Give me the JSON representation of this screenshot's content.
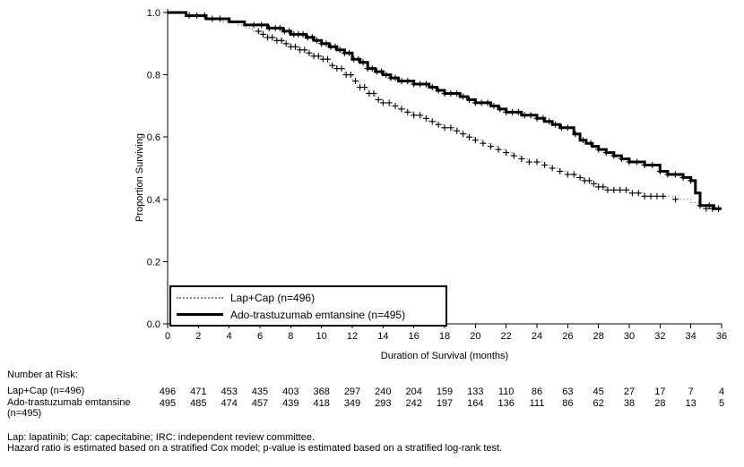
{
  "chart_data": {
    "type": "line",
    "subtype": "kaplan-meier-step",
    "title": "",
    "xlabel": "Duration of Survival (months)",
    "ylabel": "Proportion Surviving",
    "xlim": [
      0,
      36
    ],
    "ylim": [
      0.0,
      1.0
    ],
    "xticks": [
      0,
      2,
      4,
      6,
      8,
      10,
      12,
      14,
      16,
      18,
      20,
      22,
      24,
      26,
      28,
      30,
      32,
      34,
      36
    ],
    "yticks": [
      0.0,
      0.2,
      0.4,
      0.6,
      0.8,
      1.0
    ],
    "grid": false,
    "legend_position": "inside-bottom-left",
    "series": [
      {
        "id": "lapcap",
        "name": "Lap+Cap (n=496)",
        "style": "dotted",
        "color": "#8a8a8a",
        "width": 1.2,
        "points": [
          [
            0,
            1.0
          ],
          [
            1,
            1.0
          ],
          [
            1.5,
            0.99
          ],
          [
            2.5,
            0.98
          ],
          [
            3.5,
            0.97
          ],
          [
            4.5,
            0.96
          ],
          [
            5,
            0.95
          ],
          [
            5.5,
            0.94
          ],
          [
            6,
            0.93
          ],
          [
            6.5,
            0.92
          ],
          [
            7,
            0.91
          ],
          [
            7.5,
            0.9
          ],
          [
            8,
            0.89
          ],
          [
            8.5,
            0.88
          ],
          [
            9,
            0.87
          ],
          [
            9.5,
            0.86
          ],
          [
            10,
            0.85
          ],
          [
            10.5,
            0.83
          ],
          [
            11,
            0.82
          ],
          [
            11.5,
            0.8
          ],
          [
            12,
            0.78
          ],
          [
            12.5,
            0.76
          ],
          [
            13,
            0.74
          ],
          [
            13.5,
            0.72
          ],
          [
            14,
            0.71
          ],
          [
            14.5,
            0.7
          ],
          [
            15,
            0.69
          ],
          [
            15.5,
            0.68
          ],
          [
            16,
            0.67
          ],
          [
            16.5,
            0.66
          ],
          [
            17,
            0.65
          ],
          [
            17.5,
            0.64
          ],
          [
            18,
            0.63
          ],
          [
            18.5,
            0.62
          ],
          [
            19,
            0.61
          ],
          [
            19.5,
            0.6
          ],
          [
            20,
            0.59
          ],
          [
            20.5,
            0.58
          ],
          [
            21,
            0.57
          ],
          [
            21.5,
            0.56
          ],
          [
            22,
            0.55
          ],
          [
            22.5,
            0.54
          ],
          [
            23,
            0.53
          ],
          [
            23.5,
            0.52
          ],
          [
            24.5,
            0.51
          ],
          [
            25,
            0.5
          ],
          [
            25.5,
            0.49
          ],
          [
            26,
            0.48
          ],
          [
            26.5,
            0.47
          ],
          [
            27,
            0.46
          ],
          [
            27.5,
            0.45
          ],
          [
            28,
            0.44
          ],
          [
            28.5,
            0.43
          ],
          [
            30,
            0.42
          ],
          [
            31,
            0.41
          ],
          [
            33,
            0.4
          ],
          [
            34,
            0.39
          ],
          [
            34.5,
            0.38
          ],
          [
            35,
            0.37
          ],
          [
            36,
            0.37
          ]
        ],
        "censor_times": [
          5.9,
          6.2,
          6.5,
          6.8,
          7.1,
          7.4,
          7.7,
          8.0,
          8.3,
          8.6,
          8.9,
          9.2,
          9.5,
          9.8,
          10.1,
          10.4,
          10.7,
          11.0,
          11.3,
          11.6,
          11.9,
          12.2,
          12.5,
          12.8,
          13.1,
          13.4,
          13.7,
          14.0,
          14.4,
          14.8,
          15.2,
          15.6,
          16.0,
          16.4,
          16.8,
          17.2,
          17.6,
          18.0,
          18.4,
          18.8,
          19.2,
          19.6,
          20.0,
          20.5,
          21.0,
          21.5,
          22.0,
          22.5,
          23.0,
          23.5,
          24.0,
          24.5,
          25.0,
          25.5,
          26.0,
          26.4,
          26.8,
          27.1,
          27.4,
          27.7,
          28.0,
          28.3,
          28.6,
          29.0,
          29.4,
          29.8,
          30.2,
          30.6,
          31.0,
          31.4,
          31.8,
          32.2,
          33.0,
          34.6,
          35.0,
          35.4,
          35.8
        ]
      },
      {
        "id": "tdm1",
        "name": "Ado-trastuzumab emtansine (n=495)",
        "style": "solid",
        "color": "#000000",
        "width": 3,
        "points": [
          [
            0,
            1.0
          ],
          [
            1.2,
            0.99
          ],
          [
            2.5,
            0.98
          ],
          [
            4,
            0.97
          ],
          [
            5,
            0.96
          ],
          [
            6.5,
            0.95
          ],
          [
            7.5,
            0.94
          ],
          [
            8,
            0.93
          ],
          [
            9,
            0.92
          ],
          [
            9.5,
            0.91
          ],
          [
            10,
            0.9
          ],
          [
            10.5,
            0.89
          ],
          [
            11,
            0.88
          ],
          [
            11.5,
            0.87
          ],
          [
            12,
            0.85
          ],
          [
            12.5,
            0.84
          ],
          [
            13,
            0.82
          ],
          [
            13.5,
            0.81
          ],
          [
            14,
            0.8
          ],
          [
            14.5,
            0.79
          ],
          [
            15,
            0.78
          ],
          [
            16,
            0.77
          ],
          [
            17,
            0.76
          ],
          [
            17.5,
            0.75
          ],
          [
            18,
            0.74
          ],
          [
            19,
            0.73
          ],
          [
            19.5,
            0.72
          ],
          [
            20,
            0.71
          ],
          [
            21,
            0.7
          ],
          [
            21.5,
            0.69
          ],
          [
            22,
            0.68
          ],
          [
            23,
            0.67
          ],
          [
            24,
            0.66
          ],
          [
            24.5,
            0.65
          ],
          [
            25,
            0.64
          ],
          [
            25.5,
            0.63
          ],
          [
            26.4,
            0.61
          ],
          [
            26.8,
            0.59
          ],
          [
            27.2,
            0.58
          ],
          [
            27.6,
            0.57
          ],
          [
            28,
            0.56
          ],
          [
            28.5,
            0.55
          ],
          [
            29,
            0.54
          ],
          [
            29.5,
            0.53
          ],
          [
            30,
            0.52
          ],
          [
            31,
            0.51
          ],
          [
            32,
            0.49
          ],
          [
            32.5,
            0.48
          ],
          [
            33.5,
            0.47
          ],
          [
            34,
            0.46
          ],
          [
            34.3,
            0.42
          ],
          [
            34.6,
            0.38
          ],
          [
            35.5,
            0.37
          ],
          [
            36,
            0.37
          ]
        ],
        "censor_times": [
          1.4,
          1.9,
          2.4,
          2.9,
          3.4,
          5.6,
          6.1,
          6.6,
          7.0,
          7.3,
          7.6,
          7.9,
          8.2,
          8.5,
          8.8,
          9.1,
          9.4,
          9.7,
          10.0,
          10.3,
          10.6,
          10.9,
          11.2,
          11.5,
          11.8,
          12.1,
          12.4,
          12.7,
          13.0,
          13.3,
          13.6,
          13.9,
          14.2,
          14.5,
          14.8,
          15.2,
          15.6,
          16.0,
          16.4,
          16.8,
          17.2,
          17.6,
          18.0,
          18.4,
          18.8,
          19.2,
          19.6,
          20.0,
          20.4,
          20.8,
          21.2,
          21.6,
          22.0,
          22.4,
          22.8,
          23.2,
          23.6,
          24.0,
          24.4,
          24.8,
          25.2,
          25.6,
          26.0,
          26.5,
          27.0,
          27.5,
          28.0,
          28.5,
          29.0,
          29.5,
          30.0,
          30.5,
          31.0,
          31.5,
          32.0,
          32.5,
          33.0,
          33.5,
          34.0,
          35.2,
          35.8
        ]
      }
    ],
    "number_at_risk": {
      "title": "Number at Risk:",
      "times": [
        0,
        2,
        4,
        6,
        8,
        10,
        12,
        14,
        16,
        18,
        20,
        22,
        24,
        26,
        28,
        30,
        32,
        34,
        36
      ],
      "rows": [
        {
          "label": "Lap+Cap (n=496)",
          "values": [
            496,
            471,
            453,
            435,
            403,
            368,
            297,
            240,
            204,
            159,
            133,
            110,
            86,
            63,
            45,
            27,
            17,
            7,
            4
          ]
        },
        {
          "label": "Ado-trastuzumab emtansine (n=495)",
          "values": [
            495,
            485,
            474,
            457,
            439,
            418,
            349,
            293,
            242,
            197,
            164,
            136,
            111,
            86,
            62,
            38,
            28,
            13,
            5
          ]
        }
      ]
    },
    "footnotes": [
      "Lap: lapatinib; Cap: capecitabine; IRC: independent review committee.",
      "Hazard ratio is estimated based on a stratified Cox model; p-value is estimated based on a stratified log-rank test."
    ]
  }
}
